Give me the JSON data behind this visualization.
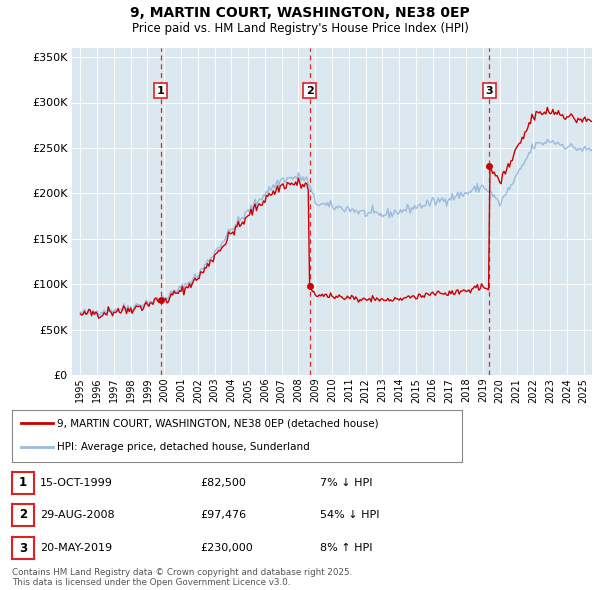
{
  "title": "9, MARTIN COURT, WASHINGTON, NE38 0EP",
  "subtitle": "Price paid vs. HM Land Registry's House Price Index (HPI)",
  "legend_property": "9, MARTIN COURT, WASHINGTON, NE38 0EP (detached house)",
  "legend_hpi": "HPI: Average price, detached house, Sunderland",
  "property_color": "#cc0000",
  "hpi_color": "#99bbdd",
  "chart_bg_color": "#dce8f0",
  "sale_points": [
    {
      "label": "1",
      "date_x": 1999.79,
      "price": 82500
    },
    {
      "label": "2",
      "date_x": 2008.66,
      "price": 97476
    },
    {
      "label": "3",
      "date_x": 2019.38,
      "price": 230000
    }
  ],
  "sale_labels": [
    {
      "label": "1",
      "date": "15-OCT-1999",
      "price": "£82,500",
      "pct": "7% ↓ HPI"
    },
    {
      "label": "2",
      "date": "29-AUG-2008",
      "price": "£97,476",
      "pct": "54% ↓ HPI"
    },
    {
      "label": "3",
      "date": "20-MAY-2019",
      "price": "£230,000",
      "pct": "8% ↑ HPI"
    }
  ],
  "vline_color": "#dd2222",
  "ylim": [
    0,
    360000
  ],
  "xlim_start": 1994.5,
  "xlim_end": 2025.5,
  "yticks": [
    0,
    50000,
    100000,
    150000,
    200000,
    250000,
    300000,
    350000
  ],
  "footer": "Contains HM Land Registry data © Crown copyright and database right 2025.\nThis data is licensed under the Open Government Licence v3.0.",
  "hpi_anchors_x": [
    1995,
    1996,
    1997,
    1998,
    1999,
    2000,
    2001,
    2002,
    2003,
    2004,
    2005,
    2006,
    2007,
    2008.0,
    2008.5,
    2009,
    2010,
    2011,
    2012,
    2013,
    2014,
    2015,
    2016,
    2017,
    2018,
    2019,
    2019.5,
    2020,
    2021,
    2022,
    2023,
    2024,
    2025.0
  ],
  "hpi_anchors_y": [
    68000,
    70000,
    72000,
    75000,
    80000,
    85000,
    95000,
    110000,
    135000,
    160000,
    180000,
    200000,
    215000,
    218000,
    215000,
    190000,
    185000,
    183000,
    178000,
    176000,
    180000,
    185000,
    190000,
    195000,
    200000,
    208000,
    200000,
    188000,
    218000,
    252000,
    258000,
    252000,
    248000
  ],
  "noise_seed": 42,
  "noise_hpi": 2500,
  "noise_prop": 1200
}
